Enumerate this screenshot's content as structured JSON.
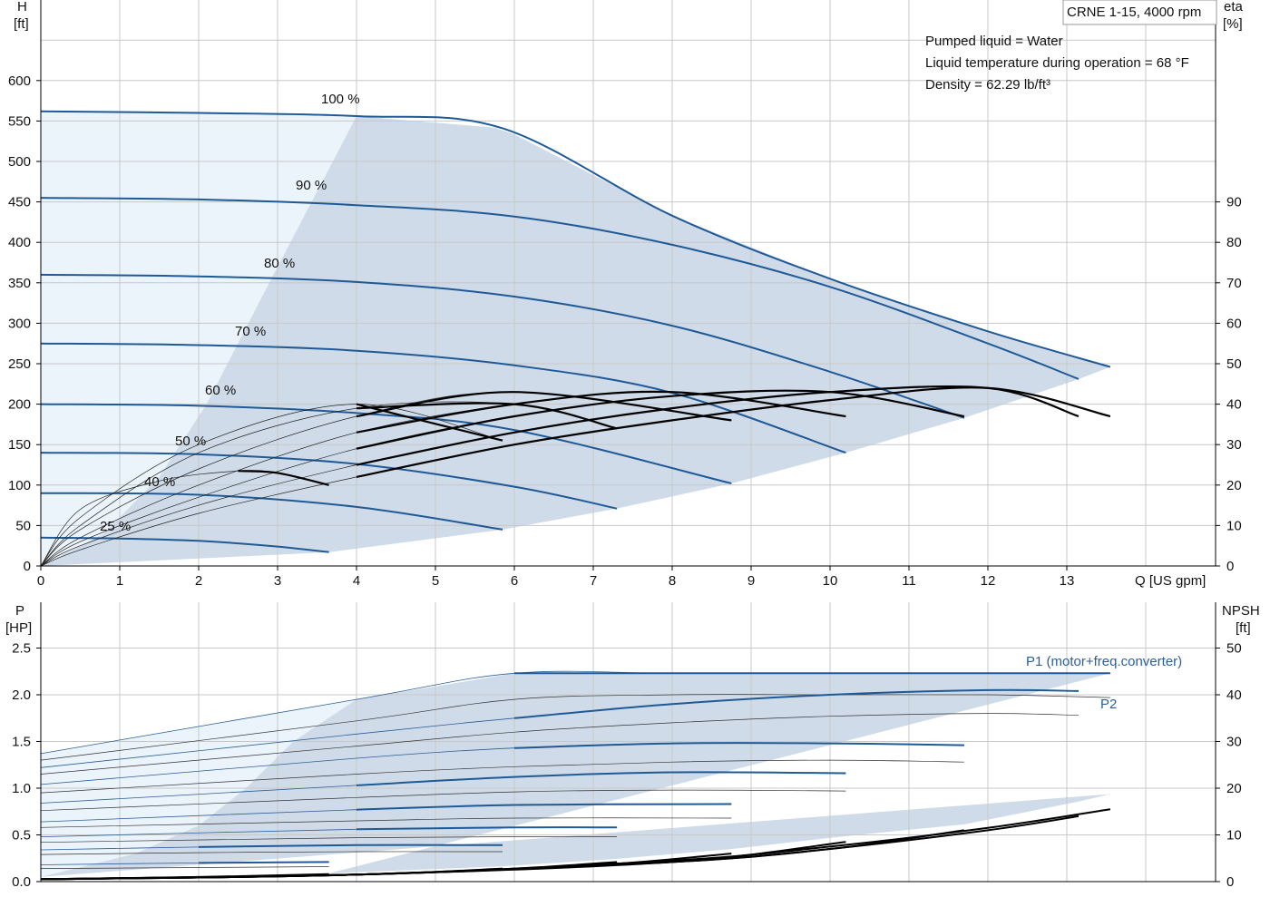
{
  "chart_data": [
    {
      "type": "line",
      "title": "CRNE 1-15, 4000 rpm",
      "xlabel": "Q [US gpm]",
      "ylabel_name": "H",
      "ylabel_unit": "[ft]",
      "y2label_name": "eta",
      "y2label_unit": "[%]",
      "xlim": [
        0,
        13.5
      ],
      "ylim": [
        0,
        600
      ],
      "y2lim": [
        0,
        90
      ],
      "xticks": [
        "0",
        "1",
        "2",
        "3",
        "4",
        "5",
        "6",
        "7",
        "8",
        "9",
        "10",
        "11",
        "12",
        "13"
      ],
      "yticks": [
        "0",
        "50",
        "100",
        "150",
        "200",
        "250",
        "300",
        "350",
        "400",
        "450",
        "500",
        "550",
        "600"
      ],
      "y2ticks": [
        "0",
        "10",
        "20",
        "30",
        "40",
        "50",
        "60",
        "70",
        "80",
        "90"
      ],
      "info_lines": [
        "Pumped liquid = Water",
        "Liquid temperature during operation = 68 °F",
        "Density = 62.29 lb/ft³"
      ],
      "speed_labels": [
        "100 %",
        "90 %",
        "80 %",
        "70 %",
        "60 %",
        "50 %",
        "40 %",
        "25 %"
      ],
      "head_curves": [
        {
          "name": "100 %",
          "x": [
            0,
            2,
            4,
            5.85,
            8,
            10,
            12,
            13.55
          ],
          "y": [
            562,
            560,
            556,
            541,
            433,
            355,
            290,
            246
          ]
        },
        {
          "name": "90 %",
          "x": [
            0,
            2,
            4,
            6,
            8,
            10,
            12,
            13.15
          ],
          "y": [
            455,
            453,
            446,
            432,
            397,
            345,
            275,
            231
          ]
        },
        {
          "name": "80 %",
          "x": [
            0,
            2,
            4,
            6,
            8,
            10,
            11.7
          ],
          "y": [
            360,
            358,
            351,
            333,
            297,
            240,
            183
          ]
        },
        {
          "name": "70 %",
          "x": [
            0,
            2,
            4,
            6,
            8,
            10.2
          ],
          "y": [
            275,
            273,
            266,
            248,
            214,
            140
          ]
        },
        {
          "name": "60 %",
          "x": [
            0,
            2,
            4,
            6,
            8.75
          ],
          "y": [
            200,
            198,
            189,
            168,
            102
          ]
        },
        {
          "name": "50 %",
          "x": [
            0,
            2,
            4,
            6,
            7.3
          ],
          "y": [
            140,
            138,
            126,
            98,
            71
          ]
        },
        {
          "name": "40 %",
          "x": [
            0,
            2,
            4,
            5.85
          ],
          "y": [
            90,
            88,
            73,
            45
          ]
        },
        {
          "name": "25 %",
          "x": [
            0,
            1,
            2,
            3,
            3.65
          ],
          "y": [
            35,
            34,
            31,
            24,
            17
          ]
        }
      ],
      "efficiency_curves": [
        {
          "name": "100 %",
          "x": [
            0.5,
            2,
            4,
            6,
            8,
            10,
            12,
            13.55
          ],
          "y": [
            4,
            13,
            22,
            30,
            36,
            41,
            44,
            37
          ]
        },
        {
          "name": "90 %",
          "x": [
            0.5,
            2,
            4,
            6,
            8,
            10,
            12,
            13.15
          ],
          "y": [
            5,
            15,
            25,
            33,
            39,
            43,
            44,
            37
          ]
        },
        {
          "name": "80 %",
          "x": [
            0.5,
            2,
            4,
            6,
            8,
            10,
            11.7
          ],
          "y": [
            6,
            17,
            29,
            37,
            42,
            43,
            37
          ]
        },
        {
          "name": "70 %",
          "x": [
            0.5,
            2,
            4,
            6,
            8,
            10.2
          ],
          "y": [
            7,
            20,
            33,
            40,
            43,
            37
          ]
        },
        {
          "name": "60 %",
          "x": [
            0.5,
            2,
            4,
            6,
            8.75
          ],
          "y": [
            9,
            24,
            37,
            43,
            36
          ]
        },
        {
          "name": "50 %",
          "x": [
            0.5,
            2,
            4,
            6,
            7.3
          ],
          "y": [
            10,
            28,
            39,
            40,
            34
          ]
        },
        {
          "name": "40 %",
          "x": [
            0.5,
            2,
            4,
            5.85
          ],
          "y": [
            12,
            30,
            40,
            31
          ]
        },
        {
          "name": "25 %",
          "x": [
            0.5,
            1.5,
            2.5,
            3,
            3.65
          ],
          "y": [
            14,
            21,
            23.5,
            23,
            20
          ]
        }
      ]
    },
    {
      "type": "line",
      "xlabel": "Q [US gpm]",
      "ylabel_name": "P",
      "ylabel_unit": "[HP]",
      "y2label_name": "NPSH",
      "y2label_unit": "[ft]",
      "xlim": [
        0,
        13.5
      ],
      "ylim": [
        0,
        2.5
      ],
      "y2lim": [
        0,
        50
      ],
      "yticks": [
        "0.0",
        "0.5",
        "1.0",
        "1.5",
        "2.0",
        "2.5"
      ],
      "y2ticks": [
        "0",
        "10",
        "20",
        "30",
        "40",
        "50"
      ],
      "series_labels": [
        "P1 (motor+freq.converter)",
        "P2"
      ],
      "p1_curves": [
        {
          "name": "100 %",
          "x": [
            0,
            4,
            6,
            8,
            10,
            12,
            13.55
          ],
          "y": [
            1.37,
            1.95,
            2.23,
            2.23,
            2.23,
            2.23,
            2.23
          ]
        },
        {
          "name": "90 %",
          "x": [
            0,
            4,
            6,
            8,
            10,
            12,
            13.15
          ],
          "y": [
            1.22,
            1.58,
            1.75,
            1.9,
            2.0,
            2.05,
            2.04
          ]
        },
        {
          "name": "80 %",
          "x": [
            0,
            4,
            6,
            8,
            10,
            11.7
          ],
          "y": [
            1.04,
            1.32,
            1.43,
            1.48,
            1.48,
            1.46
          ]
        },
        {
          "name": "70 %",
          "x": [
            0,
            4,
            6,
            8,
            10.2
          ],
          "y": [
            0.84,
            1.03,
            1.12,
            1.17,
            1.16
          ]
        },
        {
          "name": "60 %",
          "x": [
            0,
            4,
            6,
            8.75
          ],
          "y": [
            0.64,
            0.77,
            0.82,
            0.83
          ]
        },
        {
          "name": "50 %",
          "x": [
            0,
            4,
            6,
            7.3
          ],
          "y": [
            0.48,
            0.56,
            0.58,
            0.58
          ]
        },
        {
          "name": "40 %",
          "x": [
            0,
            2,
            4,
            5.85
          ],
          "y": [
            0.34,
            0.37,
            0.39,
            0.39
          ]
        },
        {
          "name": "25 %",
          "x": [
            0,
            2,
            3.65
          ],
          "y": [
            0.18,
            0.2,
            0.21
          ]
        }
      ],
      "p2_curves": [
        {
          "name": "100 %",
          "x": [
            0,
            4,
            6,
            8,
            10,
            12,
            13.55
          ],
          "y": [
            1.3,
            1.72,
            1.95,
            2.0,
            2.0,
            2.0,
            1.97
          ]
        },
        {
          "name": "90 %",
          "x": [
            0,
            4,
            6,
            8,
            10,
            12,
            13.15
          ],
          "y": [
            1.15,
            1.45,
            1.6,
            1.7,
            1.77,
            1.8,
            1.78
          ]
        },
        {
          "name": "80 %",
          "x": [
            0,
            4,
            6,
            8,
            10,
            11.7
          ],
          "y": [
            0.95,
            1.15,
            1.23,
            1.28,
            1.3,
            1.28
          ]
        },
        {
          "name": "70 %",
          "x": [
            0,
            4,
            6,
            8,
            10.2
          ],
          "y": [
            0.76,
            0.9,
            0.96,
            0.98,
            0.97
          ]
        },
        {
          "name": "60 %",
          "x": [
            0,
            4,
            6,
            8.75
          ],
          "y": [
            0.58,
            0.65,
            0.68,
            0.68
          ]
        },
        {
          "name": "50 %",
          "x": [
            0,
            4,
            6,
            7.3
          ],
          "y": [
            0.42,
            0.47,
            0.48,
            0.48
          ]
        },
        {
          "name": "40 %",
          "x": [
            0,
            2,
            4,
            5.85
          ],
          "y": [
            0.29,
            0.31,
            0.32,
            0.32
          ]
        },
        {
          "name": "25 %",
          "x": [
            0,
            2,
            3.65
          ],
          "y": [
            0.14,
            0.15,
            0.16
          ]
        }
      ],
      "npsh_curves": [
        {
          "name": "100 %",
          "x": [
            0,
            4,
            8,
            10,
            12,
            13.55
          ],
          "y": [
            0.5,
            1.5,
            4.5,
            7.5,
            11.5,
            15.5
          ]
        },
        {
          "name": "90 %",
          "x": [
            0,
            4,
            8,
            10,
            12,
            13.15
          ],
          "y": [
            0.5,
            1.5,
            4.2,
            7,
            11,
            14
          ]
        },
        {
          "name": "80 %",
          "x": [
            0,
            4,
            8,
            10,
            11.7
          ],
          "y": [
            0.5,
            1.5,
            4.2,
            7,
            11
          ]
        },
        {
          "name": "70 %",
          "x": [
            0,
            4,
            8,
            10.2
          ],
          "y": [
            0.5,
            1.5,
            4.2,
            8.5
          ]
        },
        {
          "name": "60 %",
          "x": [
            0,
            4,
            7,
            8.75
          ],
          "y": [
            0.5,
            1.5,
            3.5,
            6
          ]
        },
        {
          "name": "50 %",
          "x": [
            0,
            4,
            6,
            7.3
          ],
          "y": [
            0.5,
            1.5,
            2.8,
            4.2
          ]
        },
        {
          "name": "40 %",
          "x": [
            0,
            4,
            5.85
          ],
          "y": [
            0.5,
            1.5,
            2.8
          ]
        },
        {
          "name": "25 %",
          "x": [
            0,
            2,
            3.65
          ],
          "y": [
            0.5,
            1,
            1.6
          ]
        }
      ]
    }
  ],
  "colors": {
    "curve_blue": "#1f5a97",
    "thin_blue": "#2a5f9a",
    "fill_dark": "#cfdbe8",
    "fill_light": "#ebf3fb",
    "grid": "#c8c8c8",
    "black": "#000000"
  }
}
